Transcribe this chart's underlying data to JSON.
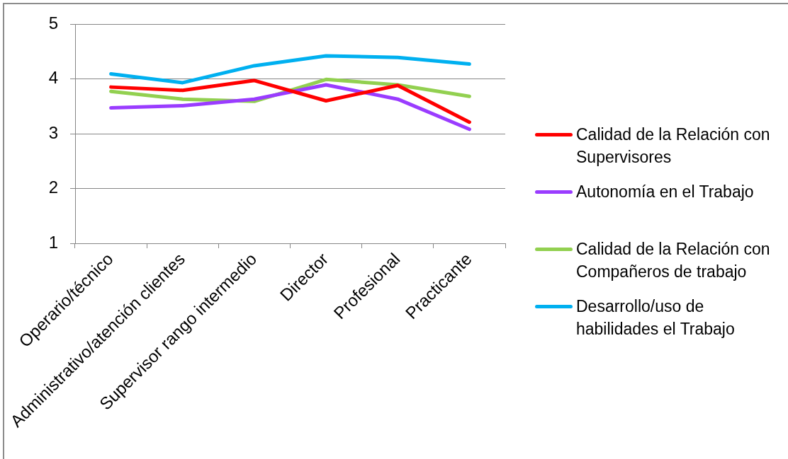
{
  "chart_data": {
    "type": "line",
    "categories": [
      "Operario/técnico",
      "Administrativo/atención clientes",
      "Supervisor rango intermedio",
      "Director",
      "Profesional",
      "Practicante"
    ],
    "series": [
      {
        "name": "Calidad de la Relación con Supervisores",
        "color": "#ff0000",
        "values": [
          3.85,
          3.79,
          3.97,
          3.6,
          3.88,
          3.21
        ]
      },
      {
        "name": "Autonomía en el Trabajo",
        "color": "#9a3cff",
        "values": [
          3.47,
          3.51,
          3.63,
          3.89,
          3.63,
          3.08
        ]
      },
      {
        "name": "Calidad de la Relación con Compañeros de trabajo",
        "color": "#92d050",
        "values": [
          3.77,
          3.63,
          3.59,
          3.99,
          3.89,
          3.68
        ]
      },
      {
        "name": "Desarrollo/uso de habilidades el Trabajo",
        "color": "#00b0f0",
        "values": [
          4.09,
          3.93,
          4.24,
          4.42,
          4.39,
          4.27
        ]
      }
    ],
    "ylim": [
      1,
      5
    ],
    "yticks": [
      1,
      2,
      3,
      4,
      5
    ],
    "grid": "y",
    "legend": "right"
  }
}
